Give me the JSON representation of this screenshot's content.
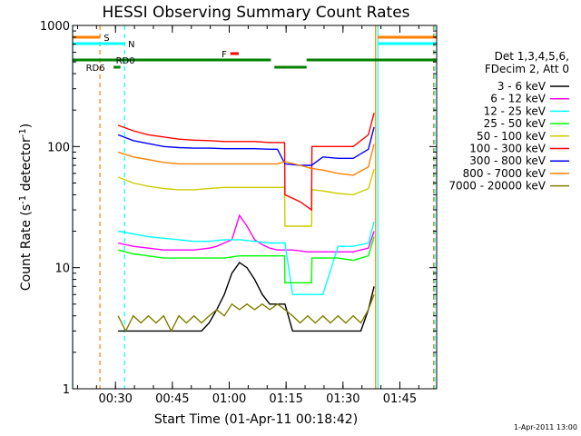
{
  "chart_data": {
    "type": "line",
    "title": "HESSI Observing Summary Count Rates",
    "xlabel": "Start Time (01-Apr-11 00:18:42)",
    "ylabel_main": "Count Rate (s",
    "ylabel_sup1": "-1",
    "ylabel_mid": " detector",
    "ylabel_sup2": "-1",
    "ylabel_end": ")",
    "yscale": "log",
    "ylim": [
      1,
      1000
    ],
    "xlim_minutes": [
      0,
      96
    ],
    "x_ticks": [
      {
        "m": 11.3,
        "label": "00:30"
      },
      {
        "m": 26.3,
        "label": "00:45"
      },
      {
        "m": 41.3,
        "label": "01:00"
      },
      {
        "m": 56.3,
        "label": "01:15"
      },
      {
        "m": 71.3,
        "label": "01:30"
      },
      {
        "m": 86.3,
        "label": "01:45"
      }
    ],
    "y_ticks": [
      {
        "v": 1,
        "label": "1"
      },
      {
        "v": 10,
        "label": "10"
      },
      {
        "v": 100,
        "label": "100"
      },
      {
        "v": 1000,
        "label": "1000"
      }
    ],
    "legend": {
      "header": [
        "Det 1,3,4,5,6,",
        "FDecim 2, Att 0"
      ],
      "placement": "right"
    },
    "series": [
      {
        "name": "3 - 6 keV",
        "color": "#000000",
        "x": [
          12,
          14,
          18,
          22,
          26,
          30,
          34,
          36,
          38,
          40,
          42,
          44,
          46,
          48,
          50,
          52,
          54,
          56,
          58,
          60,
          62,
          64,
          66,
          68,
          70,
          72,
          74,
          76,
          78,
          79.5
        ],
        "y": [
          3,
          3,
          3,
          3,
          3,
          3,
          3,
          3.5,
          4.5,
          6,
          9,
          11,
          10,
          8,
          6,
          5,
          5,
          5,
          3,
          3,
          3,
          3,
          3,
          3,
          3,
          3,
          3,
          3,
          4.5,
          7
        ]
      },
      {
        "name": "6 - 12 keV",
        "color": "#ff00ff",
        "x": [
          12,
          16,
          20,
          24,
          28,
          32,
          36,
          38,
          40,
          42,
          44,
          46,
          48,
          50,
          52,
          54,
          56,
          58,
          62,
          66,
          70,
          74,
          78,
          79.5
        ],
        "y": [
          16,
          15,
          14.5,
          14,
          14,
          14,
          14.5,
          15,
          16,
          17,
          27,
          22,
          17,
          15.5,
          14.5,
          14,
          14,
          14,
          13.5,
          13.5,
          13.5,
          13.5,
          14.5,
          20
        ]
      },
      {
        "name": "12 - 25 keV",
        "color": "#00ffff",
        "x": [
          12,
          16,
          20,
          24,
          28,
          32,
          36,
          40,
          44,
          48,
          52,
          54,
          56,
          58,
          62,
          66,
          70,
          74,
          78,
          79.5
        ],
        "y": [
          20,
          19,
          18,
          17.5,
          17,
          16.5,
          16.5,
          17,
          17,
          16.5,
          16,
          16,
          16,
          6,
          6,
          6,
          15,
          15,
          16,
          24
        ]
      },
      {
        "name": "25 - 50 keV",
        "color": "#00ff00",
        "x": [
          12,
          16,
          20,
          24,
          28,
          32,
          36,
          40,
          44,
          48,
          52,
          54,
          55.9,
          56,
          60,
          63,
          63.1,
          66,
          70,
          74,
          78,
          79.5
        ],
        "y": [
          14,
          13,
          12.5,
          12,
          12,
          12,
          12,
          12,
          12.5,
          12.5,
          12.5,
          12.5,
          12.5,
          7.5,
          7.5,
          7.5,
          12,
          12,
          12,
          11.5,
          12.5,
          18
        ]
      },
      {
        "name": "50 - 100 keV",
        "color": "#cccc00",
        "x": [
          12,
          16,
          20,
          24,
          28,
          32,
          36,
          40,
          44,
          48,
          52,
          54,
          55.9,
          56,
          60,
          63,
          63.1,
          66,
          70,
          74,
          78,
          79.5
        ],
        "y": [
          56,
          50,
          47,
          45,
          44,
          44,
          45,
          46,
          46,
          46,
          46,
          46,
          46,
          22,
          22,
          22,
          44,
          43,
          41,
          40,
          45,
          65
        ]
      },
      {
        "name": "100 - 300 keV",
        "color": "#ff0000",
        "x": [
          12,
          16,
          20,
          24,
          28,
          32,
          36,
          40,
          44,
          48,
          52,
          54,
          55.9,
          56,
          60,
          63,
          63.1,
          66,
          70,
          74,
          78,
          79.5
        ],
        "y": [
          150,
          135,
          125,
          120,
          115,
          113,
          112,
          110,
          110,
          110,
          108,
          108,
          108,
          40,
          35,
          30,
          100,
          100,
          100,
          100,
          125,
          190
        ]
      },
      {
        "name": "300 - 800 keV",
        "color": "#0000ff",
        "x": [
          12,
          16,
          20,
          24,
          28,
          32,
          36,
          40,
          44,
          48,
          52,
          54,
          56,
          60,
          63,
          66,
          70,
          74,
          78,
          79.5
        ],
        "y": [
          125,
          112,
          106,
          100,
          98,
          97,
          97,
          96,
          96,
          96,
          95,
          95,
          72,
          70,
          70,
          82,
          80,
          80,
          95,
          145
        ]
      },
      {
        "name": "800 - 7000 keV",
        "color": "#ff8000",
        "x": [
          12,
          16,
          20,
          24,
          28,
          32,
          36,
          40,
          44,
          48,
          52,
          54,
          56,
          60,
          63,
          66,
          70,
          74,
          78,
          79.5
        ],
        "y": [
          90,
          82,
          78,
          74,
          72,
          72,
          72,
          72,
          72,
          72,
          72,
          72,
          75,
          70,
          66,
          64,
          60,
          58,
          68,
          105
        ]
      },
      {
        "name": "7000 - 20000 keV",
        "color": "#808000",
        "x": [
          12,
          14,
          16,
          18,
          20,
          22,
          24,
          26,
          28,
          30,
          32,
          34,
          36,
          38,
          40,
          42,
          44,
          46,
          48,
          50,
          52,
          54,
          56,
          58,
          60,
          62,
          64,
          66,
          68,
          70,
          72,
          74,
          76,
          78,
          79.5
        ],
        "y": [
          4,
          3,
          4,
          3.5,
          4,
          3.5,
          4,
          3,
          4,
          3.5,
          4,
          3.5,
          4,
          4.5,
          4,
          5,
          4.5,
          5,
          4.5,
          5,
          4.5,
          5,
          4.5,
          4,
          3.5,
          4,
          3.5,
          4,
          3.5,
          4,
          3.5,
          4,
          3.5,
          4.5,
          6
        ]
      }
    ],
    "verticals": [
      {
        "m": 0,
        "color": "#00ffff",
        "dash": false
      },
      {
        "m": 7.2,
        "color": "#ff8000",
        "dash": true
      },
      {
        "m": 13.7,
        "color": "#00ffff",
        "dash": true
      },
      {
        "m": 79.9,
        "color": "#ff8000",
        "dash": false
      },
      {
        "m": 80.5,
        "color": "#00ffff",
        "dash": false
      },
      {
        "m": 95.2,
        "color": "#ff8000",
        "dash": true
      },
      {
        "m": 95.5,
        "color": "#00ffff",
        "dash": true
      }
    ],
    "flag_bars": [
      {
        "code": "S",
        "color": "#ff8000",
        "x": [
          0,
          7.2
        ],
        "label_at": 8.2,
        "row": 1
      },
      {
        "code": "S",
        "color": "#ff8000",
        "x": [
          80.5,
          96
        ],
        "label_at": null,
        "row": 1
      },
      {
        "code": "N",
        "color": "#00ffff",
        "x": [
          0,
          13.7
        ],
        "label_at": 14.6,
        "row": 2
      },
      {
        "code": "N",
        "color": "#00ffff",
        "x": [
          80.5,
          96
        ],
        "label_at": null,
        "row": 2
      },
      {
        "code": "F",
        "color": "#ff0000",
        "x": [
          41.6,
          43.8
        ],
        "label_at": 39.3,
        "row": 3
      },
      {
        "code": "RD0",
        "color": "#008000",
        "x": [
          0,
          52.3
        ],
        "label_at": 11.4,
        "row": 4
      },
      {
        "code": "RD0",
        "color": "#008000",
        "x": [
          61.7,
          96
        ],
        "label_at": null,
        "row": 4
      },
      {
        "code": "RD6",
        "color": "#008000",
        "x": [
          10.8,
          12.6
        ],
        "label_at": 3.5,
        "row": 5
      },
      {
        "code": "RD6",
        "color": "#008000",
        "x": [
          53.2,
          61.7
        ],
        "label_at": null,
        "row": 5
      }
    ],
    "footer_date": "1-Apr-2011 13:00"
  }
}
